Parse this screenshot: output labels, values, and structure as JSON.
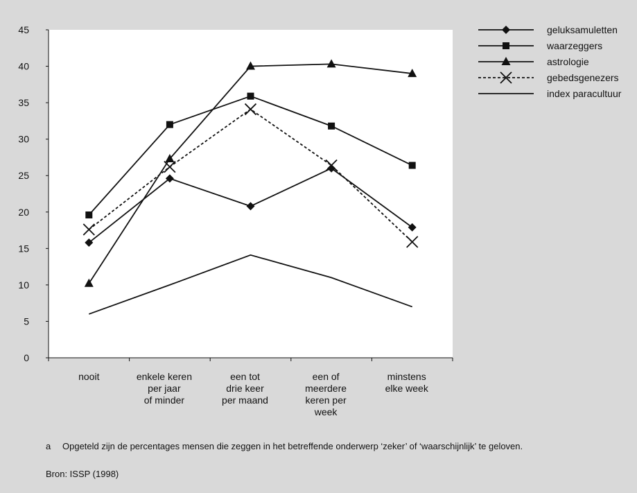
{
  "chart_data": {
    "type": "line",
    "categories": [
      [
        "nooit"
      ],
      [
        "enkele keren",
        "per jaar",
        "of minder"
      ],
      [
        "een tot",
        "drie keer",
        "per maand"
      ],
      [
        "een of",
        "meerdere",
        "keren per",
        "week"
      ],
      [
        "minstens",
        "elke week"
      ]
    ],
    "ylim": [
      0,
      45
    ],
    "yticks": [
      "0",
      "5",
      "10",
      "15",
      "20",
      "25",
      "30",
      "35",
      "40",
      "45"
    ],
    "grid": false,
    "legend_position": "right",
    "series": [
      {
        "name": "geluksamuletten",
        "marker": "diamond",
        "dashed": false,
        "values": [
          15.8,
          24.6,
          20.8,
          26.0,
          17.9
        ]
      },
      {
        "name": "waarzeggers",
        "marker": "square",
        "dashed": false,
        "values": [
          19.6,
          32.0,
          35.9,
          31.8,
          26.4
        ]
      },
      {
        "name": "astrologie",
        "marker": "triangle",
        "dashed": false,
        "values": [
          10.2,
          27.3,
          40.0,
          40.3,
          39.0
        ]
      },
      {
        "name": "gebedsgenezers",
        "marker": "cross",
        "dashed": true,
        "values": [
          17.6,
          26.2,
          34.1,
          26.4,
          15.9
        ]
      },
      {
        "name": "index paracultuur",
        "marker": "none",
        "dashed": false,
        "values": [
          6.0,
          10.0,
          14.1,
          11.0,
          7.0
        ]
      }
    ]
  },
  "footnote": {
    "letter": "a",
    "text": "Opgeteld zijn de percentages mensen die zeggen in het betreffende onderwerp ‘zeker’ of ‘waarschijnlijk’ te geloven."
  },
  "source": "Bron: ISSP (1998)"
}
